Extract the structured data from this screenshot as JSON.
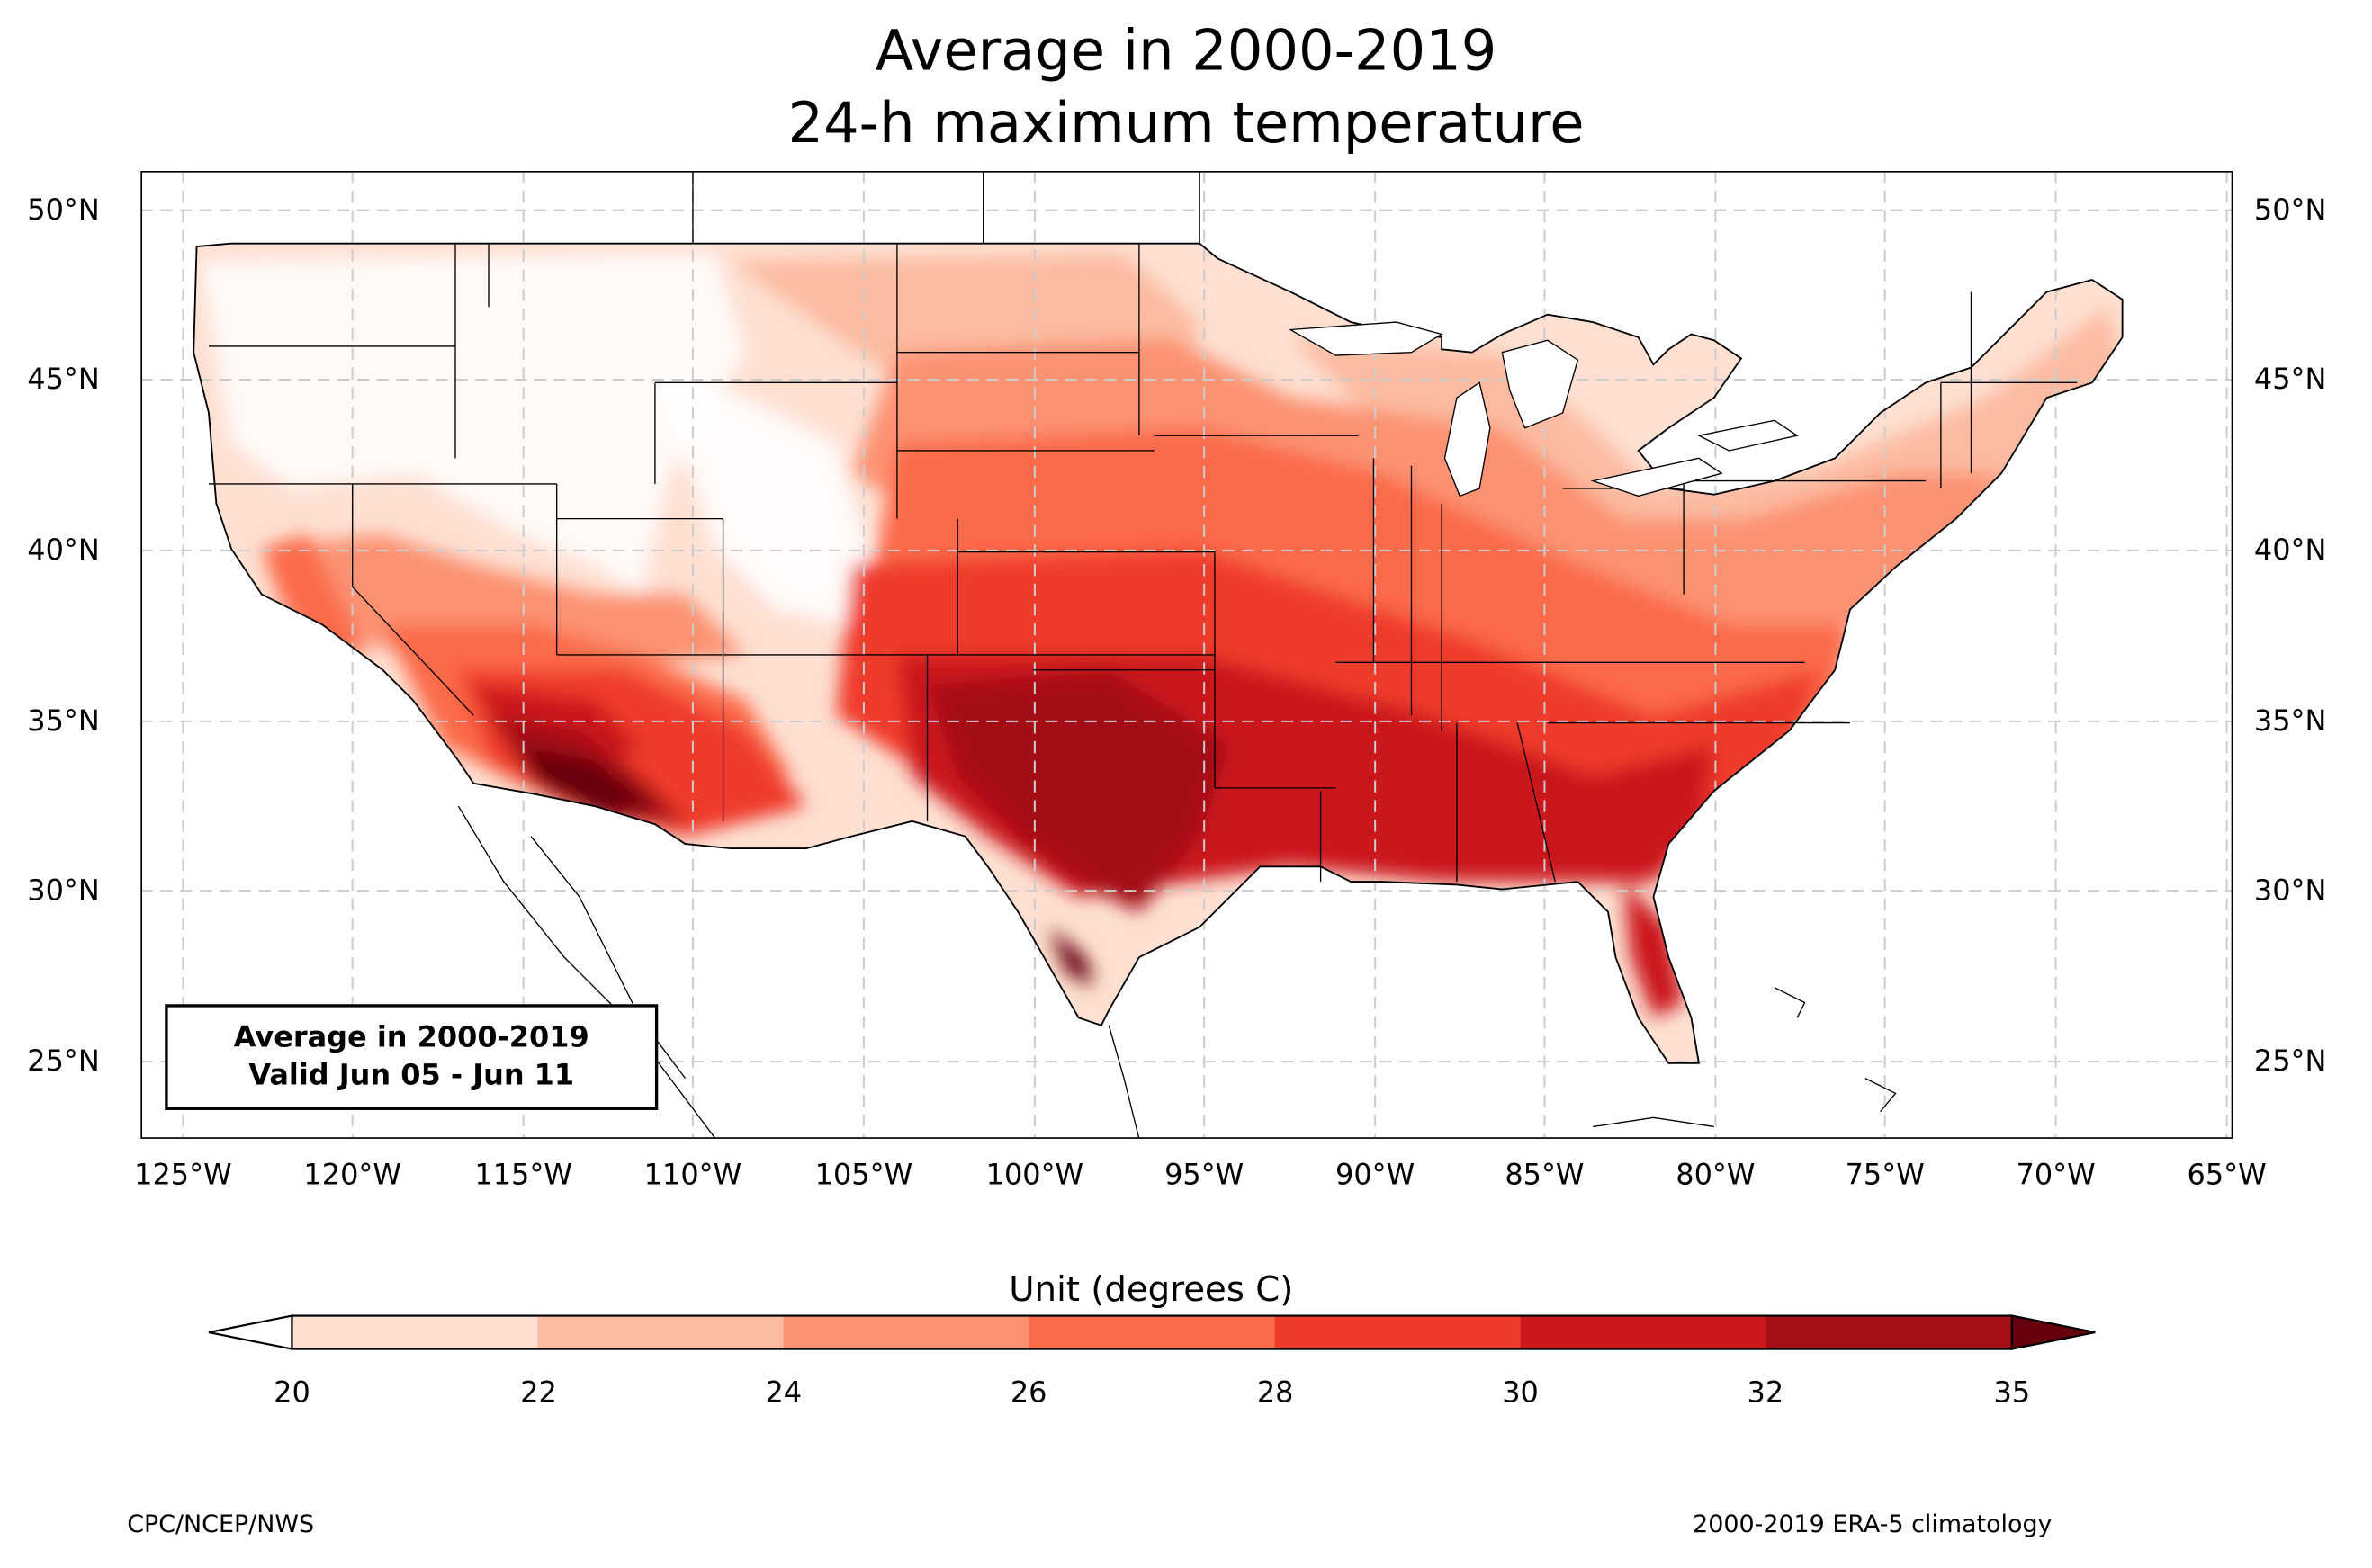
{
  "title": {
    "line1": "Average in 2000-2019",
    "line2": "24-h maximum temperature"
  },
  "map": {
    "region": "Contiguous United States",
    "projection": "PlateCarree",
    "lat_labels": [
      "50°N",
      "45°N",
      "40°N",
      "35°N",
      "30°N",
      "25°N"
    ],
    "lon_labels": [
      "125°W",
      "120°W",
      "115°W",
      "110°W",
      "105°W",
      "100°W",
      "95°W",
      "90°W",
      "85°W",
      "80°W",
      "75°W",
      "70°W",
      "65°W"
    ],
    "gridlines": "dashed"
  },
  "infobox": {
    "line1": "Average in 2000-2019",
    "line2": "Valid Jun 05 - Jun 11"
  },
  "colorbar": {
    "title": "Unit (degrees C)",
    "ticks": [
      "20",
      "22",
      "24",
      "26",
      "28",
      "30",
      "32",
      "35"
    ],
    "colors": [
      "#fee0d2",
      "#fcbba1",
      "#fc9272",
      "#fb6a4a",
      "#ef3b2c",
      "#cb181d",
      "#a50f15"
    ],
    "under_color": "#ffffff",
    "over_color": "#67000d"
  },
  "footer": {
    "left": "CPC/NCEP/NWS",
    "right": "2000-2019 ERA-5 climatology"
  }
}
